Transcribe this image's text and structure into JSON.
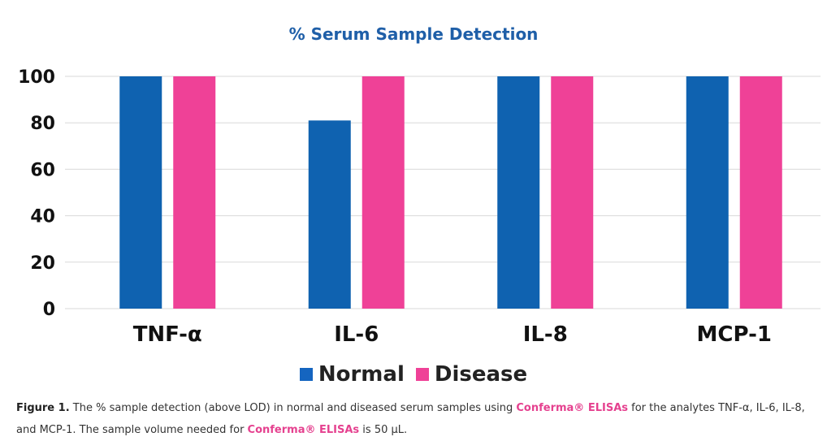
{
  "chart_data": {
    "type": "bar",
    "title": "% Serum Sample Detection",
    "categories": [
      "TNF-α",
      "IL-6",
      "IL-8",
      "MCP-1"
    ],
    "series": [
      {
        "name": "Normal",
        "color": "#0f62b0",
        "values": [
          100,
          81,
          100,
          100
        ]
      },
      {
        "name": "Disease",
        "color": "#ef4197",
        "values": [
          100,
          100,
          100,
          100
        ]
      }
    ],
    "yticks": [
      "0",
      "20",
      "40",
      "60",
      "80",
      "100"
    ],
    "ylim": [
      0,
      100
    ],
    "grid": true,
    "legend_position": "bottom"
  },
  "caption": {
    "label": "Figure 1.",
    "text1": " The % sample detection (above LOD) in normal and diseased serum samples using ",
    "brand1": "Conferma® ELISAs",
    "text2": " for the analytes TNF-α, IL-6, IL-8, and MCP-1. The sample volume needed for ",
    "brand2": "Conferma® ELISAs",
    "text3": " is 50 µL."
  }
}
